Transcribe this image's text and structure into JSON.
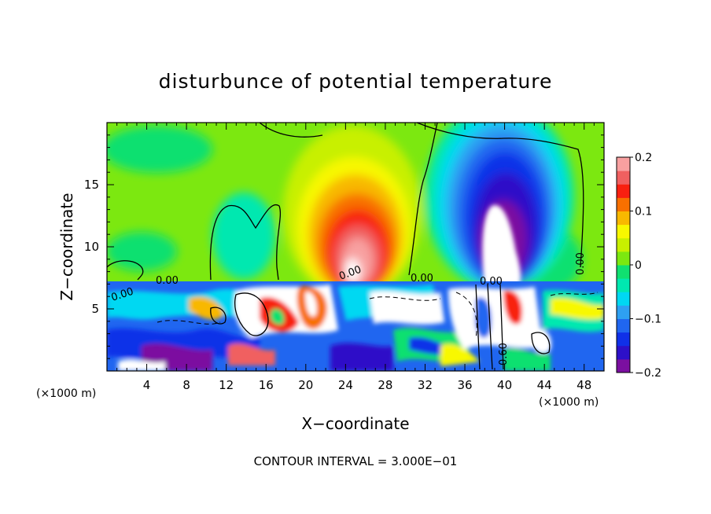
{
  "chart_data": {
    "type": "heatmap",
    "title": "disturbunce of potential temperature",
    "xlabel": "X−coordinate",
    "ylabel": "Z−coordinate",
    "x_unit_left": "(×1000 m)",
    "x_unit_right": "(×1000 m)",
    "xlim": [
      0,
      50
    ],
    "ylim": [
      0,
      20
    ],
    "x_ticks": [
      "4",
      "8",
      "12",
      "16",
      "20",
      "24",
      "28",
      "32",
      "36",
      "40",
      "44",
      "48"
    ],
    "y_ticks": [
      "5",
      "10",
      "15"
    ],
    "colorbar": {
      "range": [
        -0.2,
        0.2
      ],
      "tick_labels": [
        "0.2",
        "0.1",
        "0",
        "−0.1",
        "−0.2"
      ],
      "colors": [
        "#7b0fa0",
        "#2d10c8",
        "#1030e8",
        "#2066f0",
        "#2ea0f2",
        "#00d8f2",
        "#00e8b0",
        "#10e070",
        "#7ce810",
        "#c8f000",
        "#f8f800",
        "#f8b800",
        "#f87000",
        "#f82010",
        "#f06060",
        "#f8a0a0"
      ]
    },
    "contour_labels": [
      "0.00",
      "0.00",
      "0.00",
      "0.00",
      "0.00",
      "0.00",
      "0.60"
    ],
    "annotation": "CONTOUR INTERVAL = 3.000E−01",
    "grid": false,
    "legend": "colorbar right"
  }
}
